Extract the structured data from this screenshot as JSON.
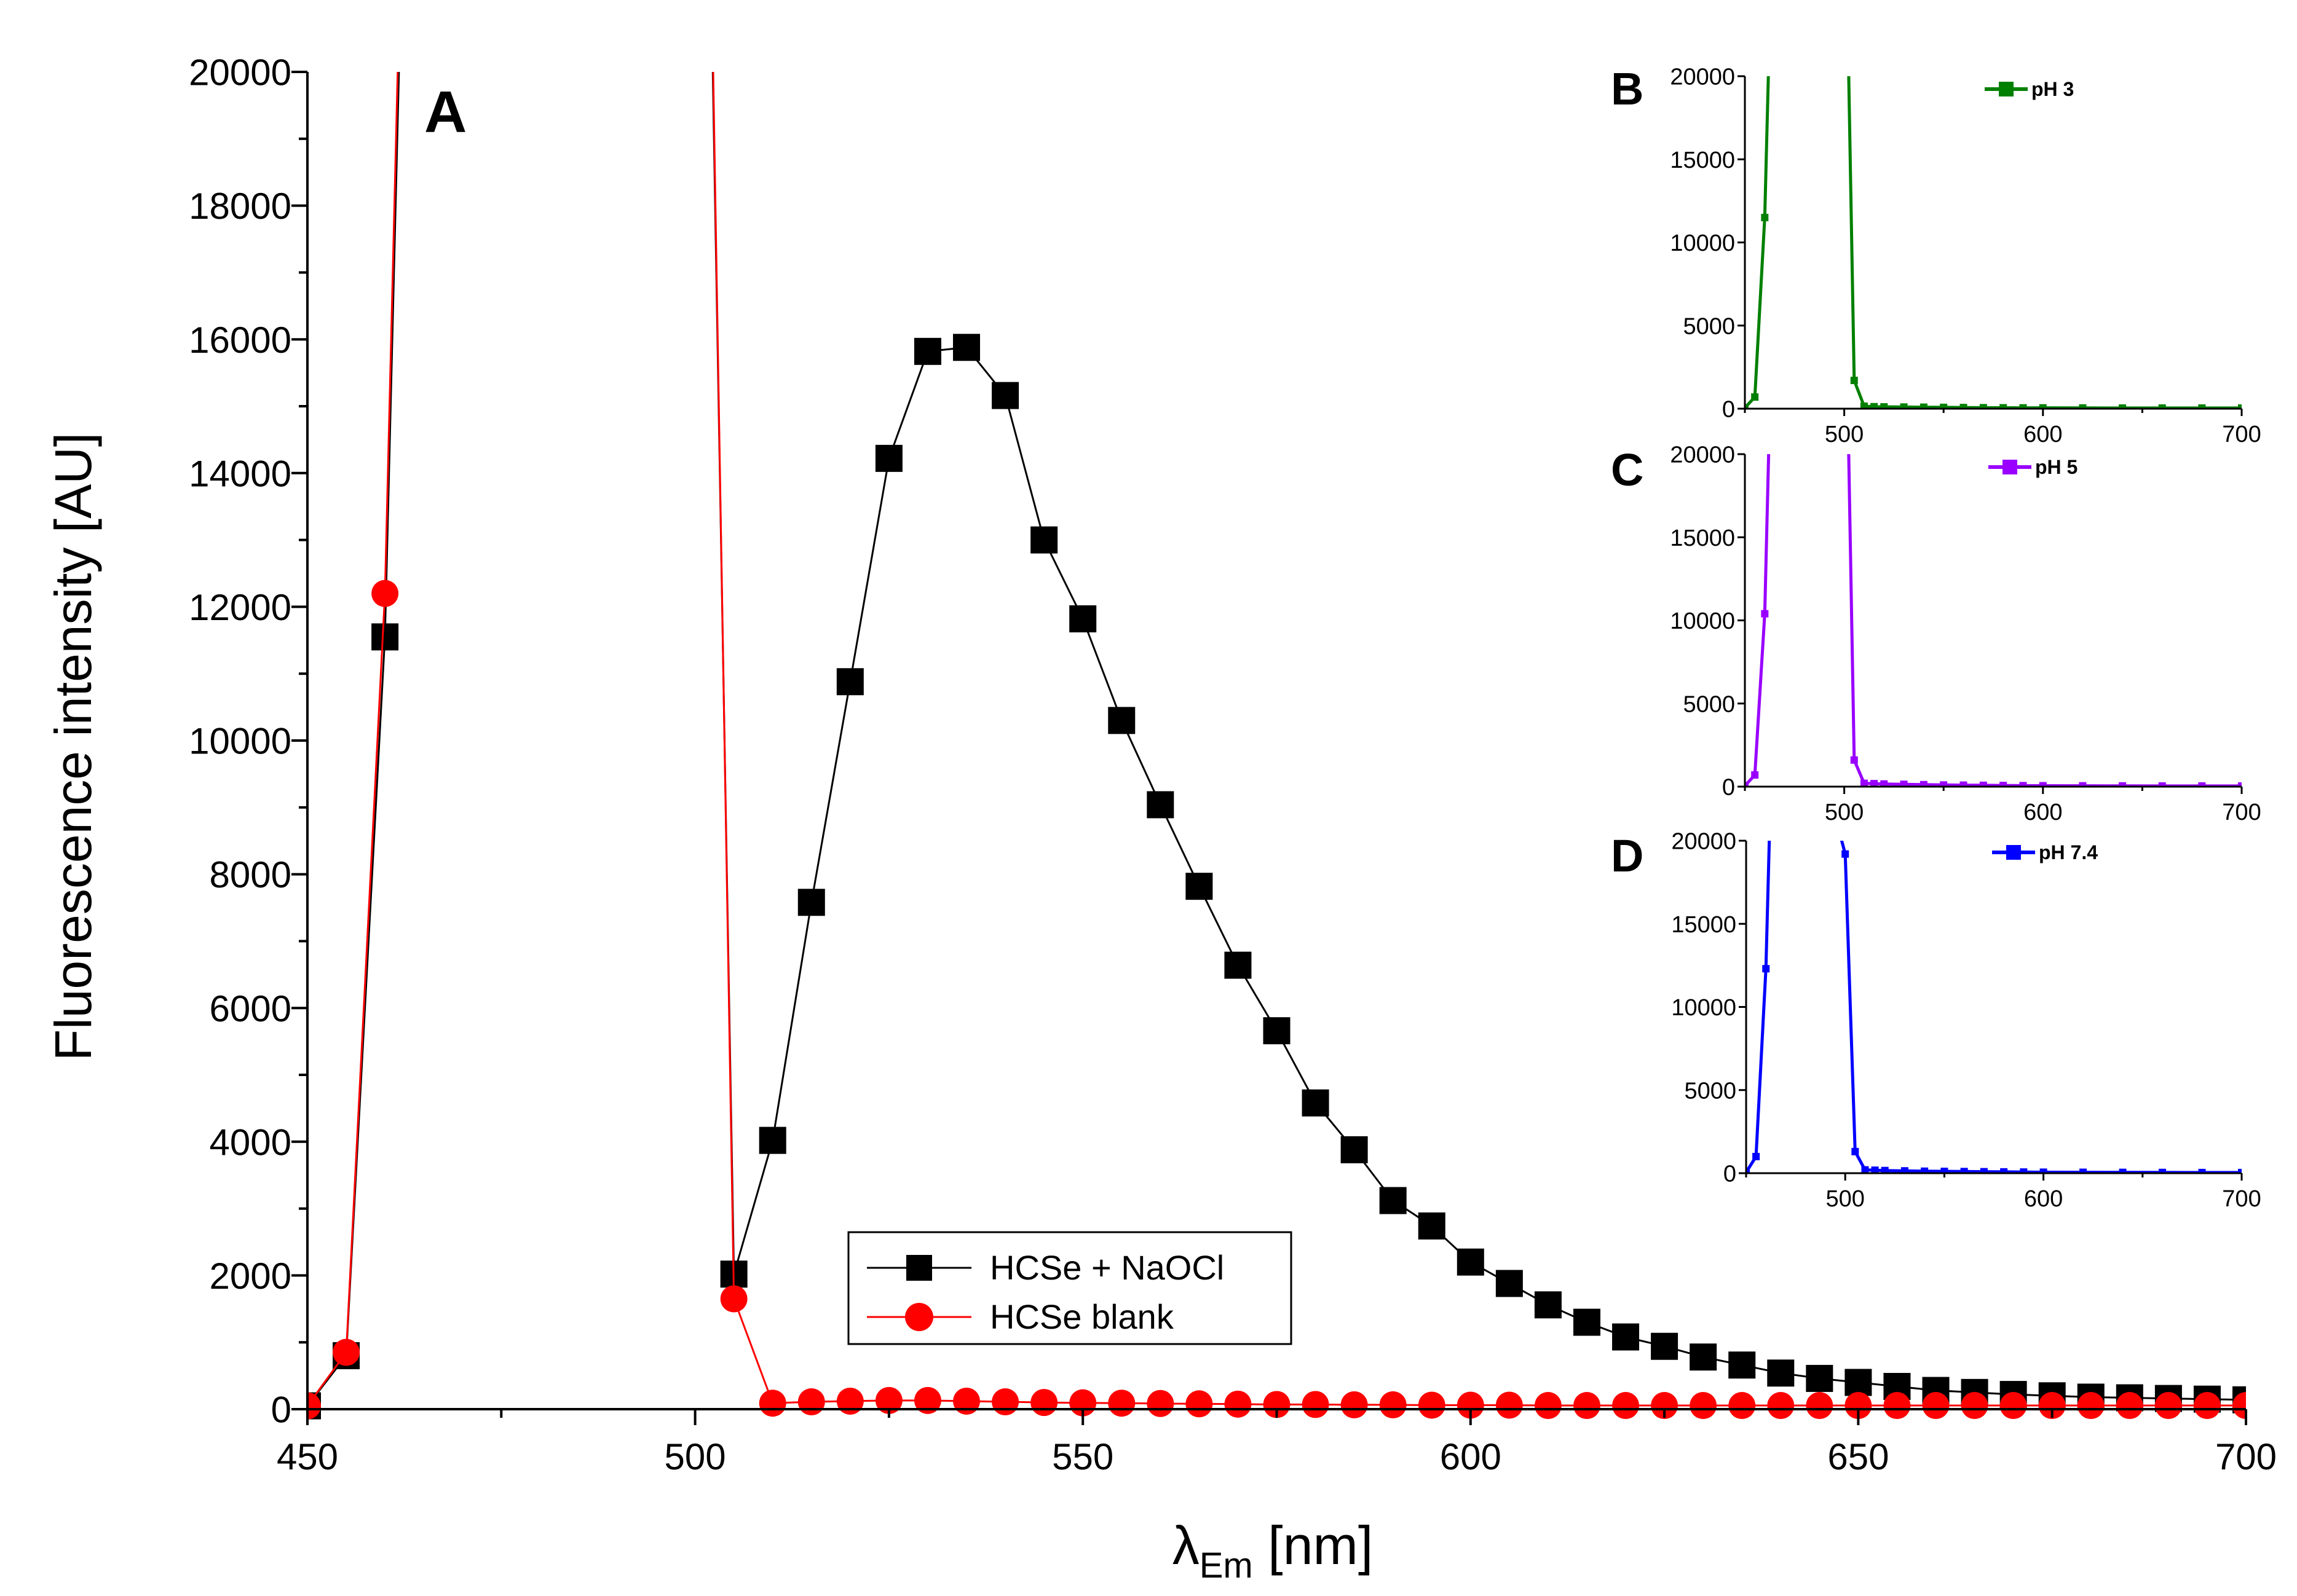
{
  "chart_data": [
    {
      "panel": "A",
      "type": "line",
      "xlabel": "λ",
      "xlabel_sub": "Em",
      "xlabel_unit": "[nm]",
      "ylabel": "Fluorescence intensity [AU]",
      "xlim": [
        450,
        700
      ],
      "ylim": [
        0,
        20000
      ],
      "x_ticks": [
        450,
        500,
        550,
        600,
        650,
        700
      ],
      "y_ticks": [
        0,
        2000,
        4000,
        6000,
        8000,
        10000,
        12000,
        14000,
        16000,
        18000,
        20000
      ],
      "legend_position": "bottom-center",
      "series": [
        {
          "name": "HCSe + NaOCl",
          "color": "#000000",
          "marker": "square",
          "x": [
            450,
            455,
            460,
            465,
            500,
            505,
            510,
            515,
            520,
            525,
            530,
            535,
            540,
            545,
            550,
            555,
            560,
            565,
            570,
            575,
            580,
            585,
            590,
            595,
            600,
            605,
            610,
            615,
            620,
            625,
            630,
            635,
            640,
            645,
            650,
            655,
            660,
            665,
            670,
            675,
            680,
            685,
            690,
            695,
            700
          ],
          "y": [
            50,
            800,
            11550,
            35000,
            35000,
            2020,
            4020,
            7580,
            10880,
            14220,
            15820,
            15880,
            15160,
            13000,
            11820,
            10300,
            9040,
            7820,
            6640,
            5660,
            4580,
            3880,
            3120,
            2740,
            2200,
            1880,
            1560,
            1300,
            1080,
            940,
            780,
            660,
            540,
            460,
            400,
            340,
            280,
            250,
            220,
            200,
            180,
            170,
            160,
            150,
            140
          ]
        },
        {
          "name": "HCSe blank",
          "color": "#ff0000",
          "marker": "circle",
          "x": [
            450,
            455,
            460,
            465,
            500,
            505,
            510,
            515,
            520,
            525,
            530,
            535,
            540,
            545,
            550,
            555,
            560,
            565,
            570,
            575,
            580,
            585,
            590,
            595,
            600,
            605,
            610,
            615,
            620,
            625,
            630,
            635,
            640,
            645,
            650,
            655,
            660,
            665,
            670,
            675,
            680,
            685,
            690,
            695,
            700
          ],
          "y": [
            50,
            850,
            12200,
            36000,
            36000,
            1650,
            90,
            110,
            120,
            130,
            130,
            120,
            110,
            100,
            95,
            90,
            85,
            80,
            75,
            70,
            70,
            65,
            65,
            60,
            60,
            60,
            55,
            55,
            55,
            55,
            55,
            55,
            55,
            55,
            55,
            55,
            55,
            55,
            55,
            55,
            55,
            55,
            55,
            55,
            55
          ]
        }
      ]
    },
    {
      "panel": "B",
      "type": "line",
      "xlim": [
        450,
        700
      ],
      "ylim": [
        0,
        20000
      ],
      "x_ticks": [
        500,
        600,
        700
      ],
      "y_ticks": [
        0,
        5000,
        10000,
        15000,
        20000
      ],
      "series": [
        {
          "name": "pH 3",
          "color": "#008000",
          "x": [
            450,
            455,
            460,
            465,
            500,
            505,
            510,
            515,
            520,
            530,
            540,
            550,
            560,
            570,
            580,
            590,
            600,
            620,
            640,
            660,
            680,
            700
          ],
          "y": [
            50,
            700,
            11500,
            35000,
            35000,
            1700,
            150,
            120,
            110,
            100,
            90,
            80,
            70,
            60,
            55,
            50,
            50,
            45,
            40,
            40,
            40,
            40
          ]
        }
      ]
    },
    {
      "panel": "C",
      "type": "line",
      "xlim": [
        450,
        700
      ],
      "ylim": [
        0,
        20000
      ],
      "x_ticks": [
        500,
        600,
        700
      ],
      "y_ticks": [
        0,
        5000,
        10000,
        15000,
        20000
      ],
      "series": [
        {
          "name": "pH 5",
          "color": "#9900ff",
          "x": [
            450,
            455,
            460,
            465,
            500,
            505,
            510,
            515,
            520,
            530,
            540,
            550,
            560,
            570,
            580,
            590,
            600,
            620,
            640,
            660,
            680,
            700
          ],
          "y": [
            50,
            700,
            10400,
            35000,
            35000,
            1600,
            200,
            180,
            160,
            140,
            120,
            100,
            90,
            80,
            70,
            60,
            55,
            50,
            45,
            40,
            40,
            40
          ]
        }
      ]
    },
    {
      "panel": "D",
      "type": "line",
      "xlim": [
        450,
        700
      ],
      "ylim": [
        0,
        20000
      ],
      "x_ticks": [
        500,
        600,
        700
      ],
      "y_ticks": [
        0,
        5000,
        10000,
        15000,
        20000
      ],
      "series": [
        {
          "name": "pH 7.4",
          "color": "#0000ff",
          "x": [
            450,
            455,
            460,
            465,
            500,
            505,
            510,
            515,
            520,
            530,
            540,
            550,
            560,
            570,
            580,
            590,
            600,
            620,
            640,
            660,
            680,
            700
          ],
          "y": [
            50,
            1000,
            12300,
            35000,
            19200,
            1300,
            200,
            180,
            160,
            140,
            120,
            110,
            100,
            90,
            80,
            70,
            60,
            55,
            50,
            45,
            40,
            40
          ]
        }
      ]
    }
  ]
}
